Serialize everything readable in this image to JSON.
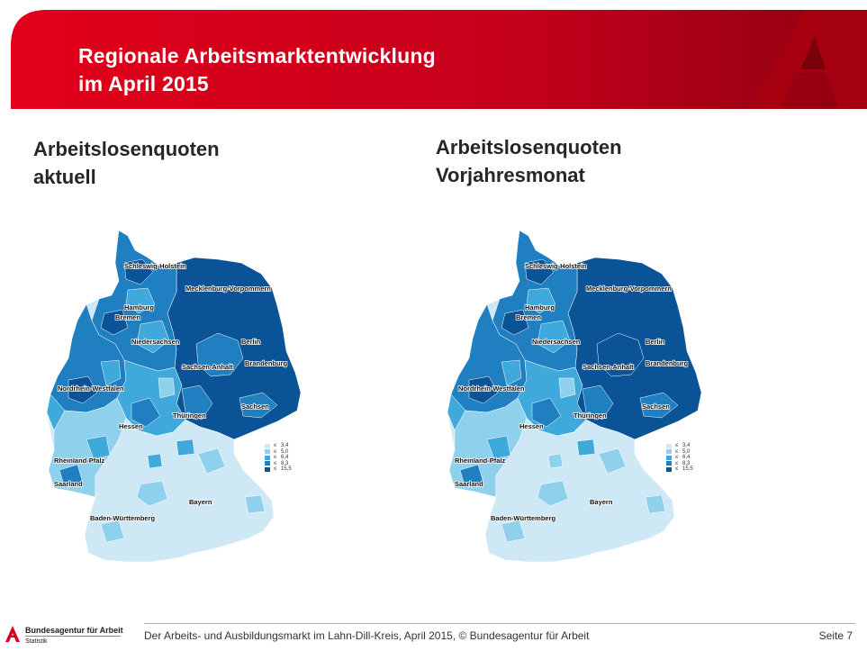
{
  "header": {
    "title_line1": "Regionale Arbeitsmarktentwicklung",
    "title_line2": "im April 2015"
  },
  "left_panel": {
    "heading_line1": "Arbeitslosenquoten",
    "heading_line2": "aktuell"
  },
  "right_panel": {
    "heading_line1": "Arbeitslosenquoten",
    "heading_line2": "Vorjahresmonat"
  },
  "map_labels": {
    "schleswig_holstein": "Schleswig-Holstein",
    "hamburg": "Hamburg",
    "mecklenburg": "Mecklenburg-Vorpommern",
    "bremen": "Bremen",
    "niedersachsen": "Niedersachsen",
    "berlin": "Berlin",
    "brandenburg": "Brandenburg",
    "sachsen_anhalt": "Sachsen-Anhalt",
    "nrw": "Nordrhein-Westfalen",
    "sachsen": "Sachsen",
    "thueringen": "Thüringen",
    "hessen": "Hessen",
    "rheinland_pfalz": "Rheinland-Pfalz",
    "saarland": "Saarland",
    "bayern": "Bayern",
    "baden_wuerttemberg": "Baden-Württemberg"
  },
  "legend": {
    "symbol": "≤",
    "classes": [
      {
        "value": "3,4",
        "color": "#cfe8f6"
      },
      {
        "value": "5,0",
        "color": "#8fd0ec"
      },
      {
        "value": "6,4",
        "color": "#3fa9dc"
      },
      {
        "value": "8,3",
        "color": "#1f7fc0"
      },
      {
        "value": "15,5",
        "color": "#0a5396"
      }
    ]
  },
  "colors": {
    "brand_red": "#d7001e",
    "brand_dark_red": "#9a0010",
    "class1": "#cfe8f6",
    "class2": "#8fd0ec",
    "class3": "#3fa9dc",
    "class4": "#1f7fc0",
    "class5": "#0a5396"
  },
  "footer": {
    "text": "Der Arbeits- und Ausbildungsmarkt im Lahn-Dill-Kreis,  April 2015,  © Bundesagentur für Arbeit",
    "page": "Seite 7",
    "logo_name": "Bundesagentur für Arbeit",
    "logo_sub": "Statistik"
  }
}
